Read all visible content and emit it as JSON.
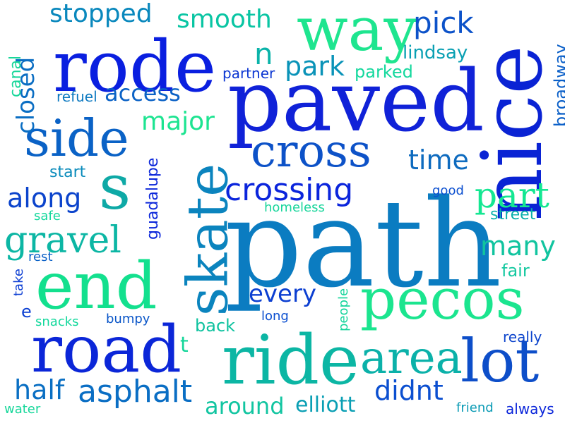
{
  "words": {
    "path": "path",
    "paved": "paved",
    "nice": "nice",
    "rode": "rode",
    "way": "way",
    "road": "road",
    "ride": "ride",
    "end": "end",
    "pecos": "pecos",
    "lot": "lot",
    "skate": "skate",
    "side": "side",
    "cross": "cross",
    "area": "area",
    "s": "s",
    "crossing": "crossing",
    "gravel": "gravel",
    "part": "part",
    "asphalt": "asphalt",
    "half": "half",
    "stopped": "stopped",
    "smooth": "smooth",
    "pick": "pick",
    "major": "major",
    "time": "time",
    "along": "along",
    "many": "many",
    "park": "park",
    "closed": "closed",
    "access": "access",
    "every": "every",
    "around": "around",
    "didnt": "didnt",
    "elliott": "elliott",
    "n": "n",
    "broadway": "broadway",
    "guadalupe": "guadalupe",
    "lindsay": "lindsay",
    "parked": "parked",
    "partner": "partner",
    "canal": "canal",
    "refuel": "refuel",
    "start": "start",
    "safe": "safe",
    "rest": "rest",
    "take": "take",
    "e": "e",
    "homeless": "homeless",
    "good": "good",
    "street": "street",
    "fair": "fair",
    "people": "people",
    "long": "long",
    "back": "back",
    "bumpy": "bumpy",
    "snacks": "snacks",
    "t": "t",
    "really": "really",
    "water": "water",
    "friend": "friend",
    "always": "always"
  },
  "palette": [
    "#0a1fe0",
    "#0b4fd0",
    "#0a7ec0",
    "#07a6b0",
    "#06c8a0",
    "#11e493"
  ]
}
